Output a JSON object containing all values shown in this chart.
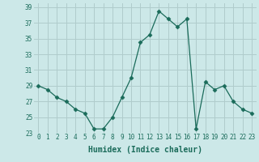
{
  "x": [
    0,
    1,
    2,
    3,
    4,
    5,
    6,
    7,
    8,
    9,
    10,
    11,
    12,
    13,
    14,
    15,
    16,
    17,
    18,
    19,
    20,
    21,
    22,
    23
  ],
  "y": [
    29,
    28.5,
    27.5,
    27,
    26,
    25.5,
    23.5,
    23.5,
    25,
    27.5,
    30,
    34.5,
    35.5,
    38.5,
    37.5,
    36.5,
    37.5,
    23.5,
    29.5,
    28.5,
    29,
    27,
    26,
    25.5
  ],
  "xlabel": "Humidex (Indice chaleur)",
  "xlim": [
    -0.5,
    23.5
  ],
  "ylim": [
    23,
    39.5
  ],
  "yticks": [
    23,
    25,
    27,
    29,
    31,
    33,
    35,
    37,
    39
  ],
  "xticks": [
    0,
    1,
    2,
    3,
    4,
    5,
    6,
    7,
    8,
    9,
    10,
    11,
    12,
    13,
    14,
    15,
    16,
    17,
    18,
    19,
    20,
    21,
    22,
    23
  ],
  "line_color": "#1a6b5a",
  "marker": "D",
  "marker_size": 2.5,
  "bg_color": "#cce8e8",
  "grid_color": "#b0cccc",
  "label_color": "#1a6b5a",
  "tick_fontsize": 5.5,
  "xlabel_fontsize": 7.0
}
